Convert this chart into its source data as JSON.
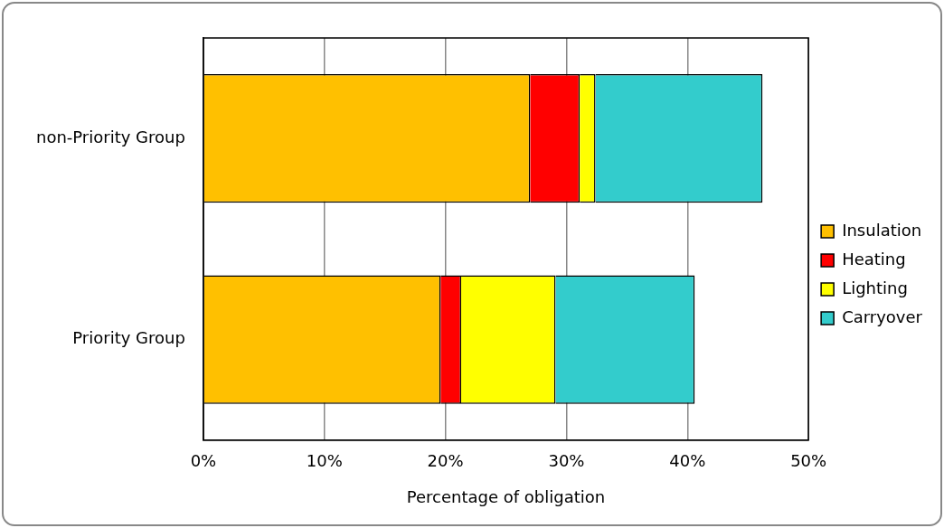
{
  "chart_data": {
    "type": "bar",
    "orientation": "horizontal",
    "stacked": true,
    "xlabel": "Percentage of obligation",
    "categories": [
      "non-Priority Group",
      "Priority Group"
    ],
    "series": [
      {
        "name": "Insulation",
        "color": "#ffc000",
        "values": [
          27.0,
          19.6
        ]
      },
      {
        "name": "Heating",
        "color": "#ff0000",
        "values": [
          4.1,
          1.7
        ]
      },
      {
        "name": "Lighting",
        "color": "#ffff00",
        "values": [
          1.3,
          7.8
        ]
      },
      {
        "name": "Carryover",
        "color": "#33cccc",
        "values": [
          13.8,
          11.5
        ]
      }
    ],
    "xlim": [
      0,
      50
    ],
    "xticks": [
      {
        "value": 0,
        "label": "0%"
      },
      {
        "value": 10,
        "label": "10%"
      },
      {
        "value": 20,
        "label": "20%"
      },
      {
        "value": 30,
        "label": "30%"
      },
      {
        "value": 40,
        "label": "40%"
      },
      {
        "value": 50,
        "label": "50%"
      }
    ],
    "grid": "x",
    "legend": "right"
  }
}
